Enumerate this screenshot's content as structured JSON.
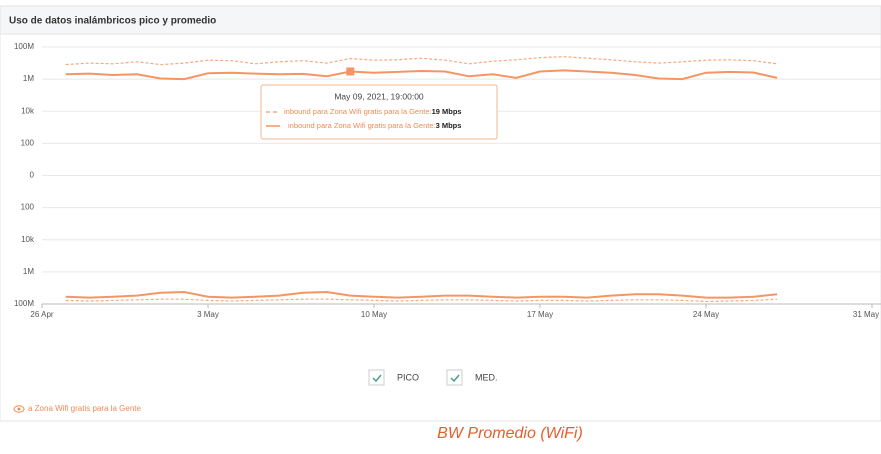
{
  "header": {
    "title": "Uso de datos inalámbricos pico y promedio"
  },
  "chart_data": {
    "type": "line",
    "scale": "symlog",
    "grid": true,
    "x": [
      "2021-04-27",
      "2021-04-28",
      "2021-04-29",
      "2021-04-30",
      "2021-05-01",
      "2021-05-02",
      "2021-05-03",
      "2021-05-04",
      "2021-05-05",
      "2021-05-06",
      "2021-05-07",
      "2021-05-08",
      "2021-05-09",
      "2021-05-10",
      "2021-05-11",
      "2021-05-12",
      "2021-05-13",
      "2021-05-14",
      "2021-05-15",
      "2021-05-16",
      "2021-05-17",
      "2021-05-18",
      "2021-05-19",
      "2021-05-20",
      "2021-05-21",
      "2021-05-22",
      "2021-05-23",
      "2021-05-24",
      "2021-05-25",
      "2021-05-26",
      "2021-05-27"
    ],
    "xlim": [
      "2021-04-26",
      "2021-05-31"
    ],
    "xticks": [
      {
        "value": "2021-04-26",
        "label": "26 Apr"
      },
      {
        "value": "2021-05-03",
        "label": "3 May"
      },
      {
        "value": "2021-05-10",
        "label": "10 May"
      },
      {
        "value": "2021-05-17",
        "label": "17 May"
      },
      {
        "value": "2021-05-24",
        "label": "24 May"
      },
      {
        "value": "2021-05-31",
        "label": "31 May"
      }
    ],
    "ylim": [
      -100000000,
      100000000
    ],
    "yticks": [
      {
        "value": 100000000,
        "label": "100M"
      },
      {
        "value": 1000000,
        "label": "1M"
      },
      {
        "value": 10000,
        "label": "10k"
      },
      100,
      0,
      {
        "value": -100,
        "label": "100"
      },
      {
        "value": -10000,
        "label": "10k"
      },
      {
        "value": -1000000,
        "label": "1M"
      },
      {
        "value": -100000000,
        "label": "100M"
      }
    ],
    "series": [
      {
        "name": "PICO",
        "color": "#f6a97f",
        "dash": true,
        "inbound": [
          8000000,
          10000000,
          9000000,
          12000000,
          8000000,
          10000000,
          15000000,
          14000000,
          9000000,
          12000000,
          14000000,
          10000000,
          19000000,
          15000000,
          16000000,
          20000000,
          15000000,
          9000000,
          13000000,
          16000000,
          22000000,
          25000000,
          20000000,
          16000000,
          12000000,
          10000000,
          12000000,
          15000000,
          16000000,
          14000000,
          9000000
        ],
        "outbound": [
          -60000000,
          -65000000,
          -60000000,
          -55000000,
          -50000000,
          -50000000,
          -60000000,
          -65000000,
          -60000000,
          -55000000,
          -50000000,
          -50000000,
          -55000000,
          -60000000,
          -65000000,
          -60000000,
          -55000000,
          -55000000,
          -60000000,
          -65000000,
          -60000000,
          -60000000,
          -65000000,
          -60000000,
          -55000000,
          -55000000,
          -60000000,
          -70000000,
          -65000000,
          -60000000,
          -50000000
        ]
      },
      {
        "name": "MED.",
        "color": "#f59564",
        "dash": false,
        "inbound": [
          2000000,
          2200000,
          1800000,
          2000000,
          1100000,
          1000000,
          2300000,
          2500000,
          2200000,
          2000000,
          2100000,
          1500000,
          3000000,
          2500000,
          2800000,
          3200000,
          3000000,
          1500000,
          2000000,
          1200000,
          3000000,
          3500000,
          3000000,
          2500000,
          1800000,
          1100000,
          1000000,
          2500000,
          2800000,
          2600000,
          1200000
        ],
        "outbound": [
          -35000000,
          -40000000,
          -35000000,
          -30000000,
          -20000000,
          -18000000,
          -35000000,
          -40000000,
          -35000000,
          -30000000,
          -20000000,
          -18000000,
          -30000000,
          -35000000,
          -40000000,
          -35000000,
          -30000000,
          -30000000,
          -35000000,
          -40000000,
          -35000000,
          -35000000,
          -40000000,
          -30000000,
          -25000000,
          -25000000,
          -30000000,
          -40000000,
          -40000000,
          -35000000,
          -25000000
        ]
      }
    ],
    "tooltip": {
      "title": "May 09, 2021, 19:00:00",
      "index": 12,
      "items": [
        {
          "label": "inbound para Zona Wifi gratis para la Gente:",
          "value_label": "19 Mbps"
        },
        {
          "label": "inbound para Zona Wifi gratis para la Gente:",
          "value_label": "3 Mbps"
        }
      ]
    }
  },
  "footer": {
    "link": "a Zona Wifi gratis para la Gente",
    "caption": "BW Promedio (WiFi)"
  }
}
